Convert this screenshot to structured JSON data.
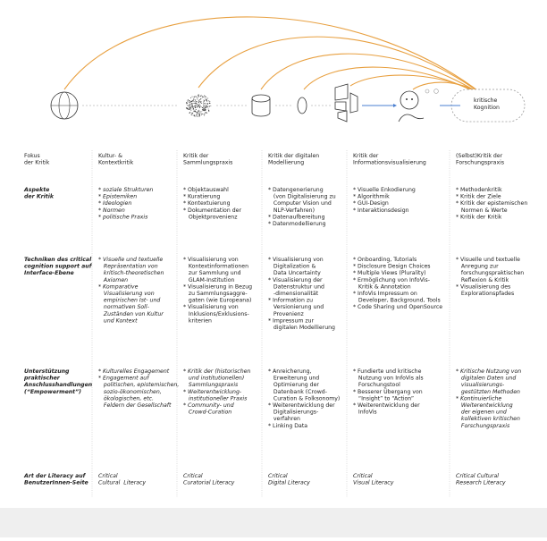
{
  "diagram": {
    "target_label": [
      "kritische",
      "Kognition"
    ]
  },
  "table": {
    "header": {
      "label": [
        "Fokus",
        "der Kritik"
      ],
      "cells": [
        [
          "Kultur- &",
          "Kontextkritik"
        ],
        [
          "Kritik der",
          "Sammlungspraxis"
        ],
        [
          "Kritik der digitalen",
          "Modellierung"
        ],
        [
          "Kritik der",
          "Informationsvisualisierung"
        ],
        [
          "(Selbst)Kritik der",
          "Forschungspraxis"
        ]
      ]
    },
    "rows": [
      {
        "label": [
          "Aspekte",
          "der Kritik"
        ],
        "cells": [
          [
            "* soziale Strukturen",
            "* Epistemiken",
            "* Ideologien",
            "* Normen",
            "* politische Praxis"
          ],
          [
            "* Objektauswahl",
            "* Kuratierung",
            "* Kontextuierung",
            "* Dokumentation der",
            "   Objektprovenienz"
          ],
          [
            "* Datengenerierung",
            "   (von Digitalisierung zu",
            "   Computer Vision und",
            "   NLP-Verfahren)",
            "* Datenaufbereitung",
            "* Datenmodellierung"
          ],
          [
            "* Visuelle Enkodierung",
            "* Algorithmik",
            "* GUI-Design",
            "* Interaktionsdesign"
          ],
          [
            "* Methodenkritik",
            "* Kritik der Ziele",
            "* Kritik der epistemischen",
            "   Normen & Werte",
            "* Kritik der Kritik"
          ]
        ]
      },
      {
        "label": [
          "Techniken des critical",
          "cognition support auf",
          "Interface-Ebene"
        ],
        "cells": [
          [
            "* Visuelle und textuelle",
            "   Repräsentation von",
            "   kritisch-theoretischen",
            "   Axiomen",
            "* Komparative",
            "   Visualisierung von",
            "   empirischen Ist- und",
            "   normativen Soll-",
            "   Zuständen von Kultur",
            "   und Kontext"
          ],
          [
            "* Visualisierung von",
            "   Kontextinformationen",
            "   zur Sammlung und",
            "   GLAM-Institution",
            "* Visualisierung in Bezug",
            "   zu Sammlungsaggre-",
            "   gaten (wie Europeana)",
            "* Visualisierung von",
            "   Inklusions/Exklusions-",
            "   kriterien"
          ],
          [
            "* Visualisierung von",
            "   Digitalization &",
            "   Data Uncertainty",
            "* Visualisierung der",
            "   Datenstruktur und",
            "   -dimensionalität",
            "* Information zu",
            "   Versionierung und",
            "   Provenienz",
            "* Impressum zur",
            "   digitalen Modellierung"
          ],
          [
            "* Onboarding, Tutorials",
            "* Disclosure Design Choices",
            "* Multiple Views (Plurality)",
            "* Ermöglichung von InfoVis-",
            "   Kritik & Annotation",
            "* InfoVis Impressum on",
            "   Developer, Background, Tools",
            "* Code Sharing und OpenSource"
          ],
          [
            "* Visuelle und textuelle",
            "   Anregung zur",
            "   forschungspraktischen",
            "   Reflexion & Kritik",
            "* Visualisierung des",
            "   Explorationspfades"
          ]
        ]
      },
      {
        "label": [
          "Unterstützung",
          "praktischer",
          "Anschlusshandlungen",
          "(“Empowerment”)"
        ],
        "cells": [
          [
            "* Kulturelles Engagement",
            "* Engagement auf",
            "   politischen, epistemischen,",
            "   sozio-ökonomischen,",
            "   ökologischen, etc.",
            "   Feldern der Gesellschaft"
          ],
          [
            "* Kritik der (historischen",
            "   und institutionellen)",
            "   Sammlungspraxis",
            "* Weiterentwicklung-",
            "   institutioneller Praxis",
            "* Community- und",
            "   Crowd-Curation"
          ],
          [
            "* Anreicherung,",
            "   Erweiterung und",
            "   Optimierung der",
            "   Datenbank (Crowd-",
            "   Curation & Folksonomy)",
            "* Weiterentwicklung der",
            "   Digitalisierungs-",
            "   verfahren",
            "* Linking Data"
          ],
          [
            "* Fundierte und kritische",
            "   Nutzung von InfoVis als",
            "   Forschungstool",
            "* Besserer Übergang von",
            "   “Insight” to “Action”",
            "* Weiterentwicklung der",
            "   InfoVis"
          ],
          [
            "* Kritische Nutzung von",
            "   digitalen Daten und",
            "   visualisierungs-",
            "   gestützten Methoden",
            "* Kontinuierliche",
            "   Weiterentwicklung",
            "   der eigenen und",
            "   kollektiven kritischen",
            "   Forschungspraxis"
          ]
        ]
      },
      {
        "label": [
          "Art der Literacy auf",
          "BenutzerInnen-Seite"
        ],
        "cells": [
          [
            "Critical",
            "Cultural  Literacy"
          ],
          [
            "Critical",
            "Curatorial Literacy"
          ],
          [
            "Critical",
            "Digital Literacy"
          ],
          [
            "Critical",
            "Visual Literacy"
          ],
          [
            "Critical Cultural",
            "Research Literacy"
          ]
        ]
      }
    ]
  }
}
